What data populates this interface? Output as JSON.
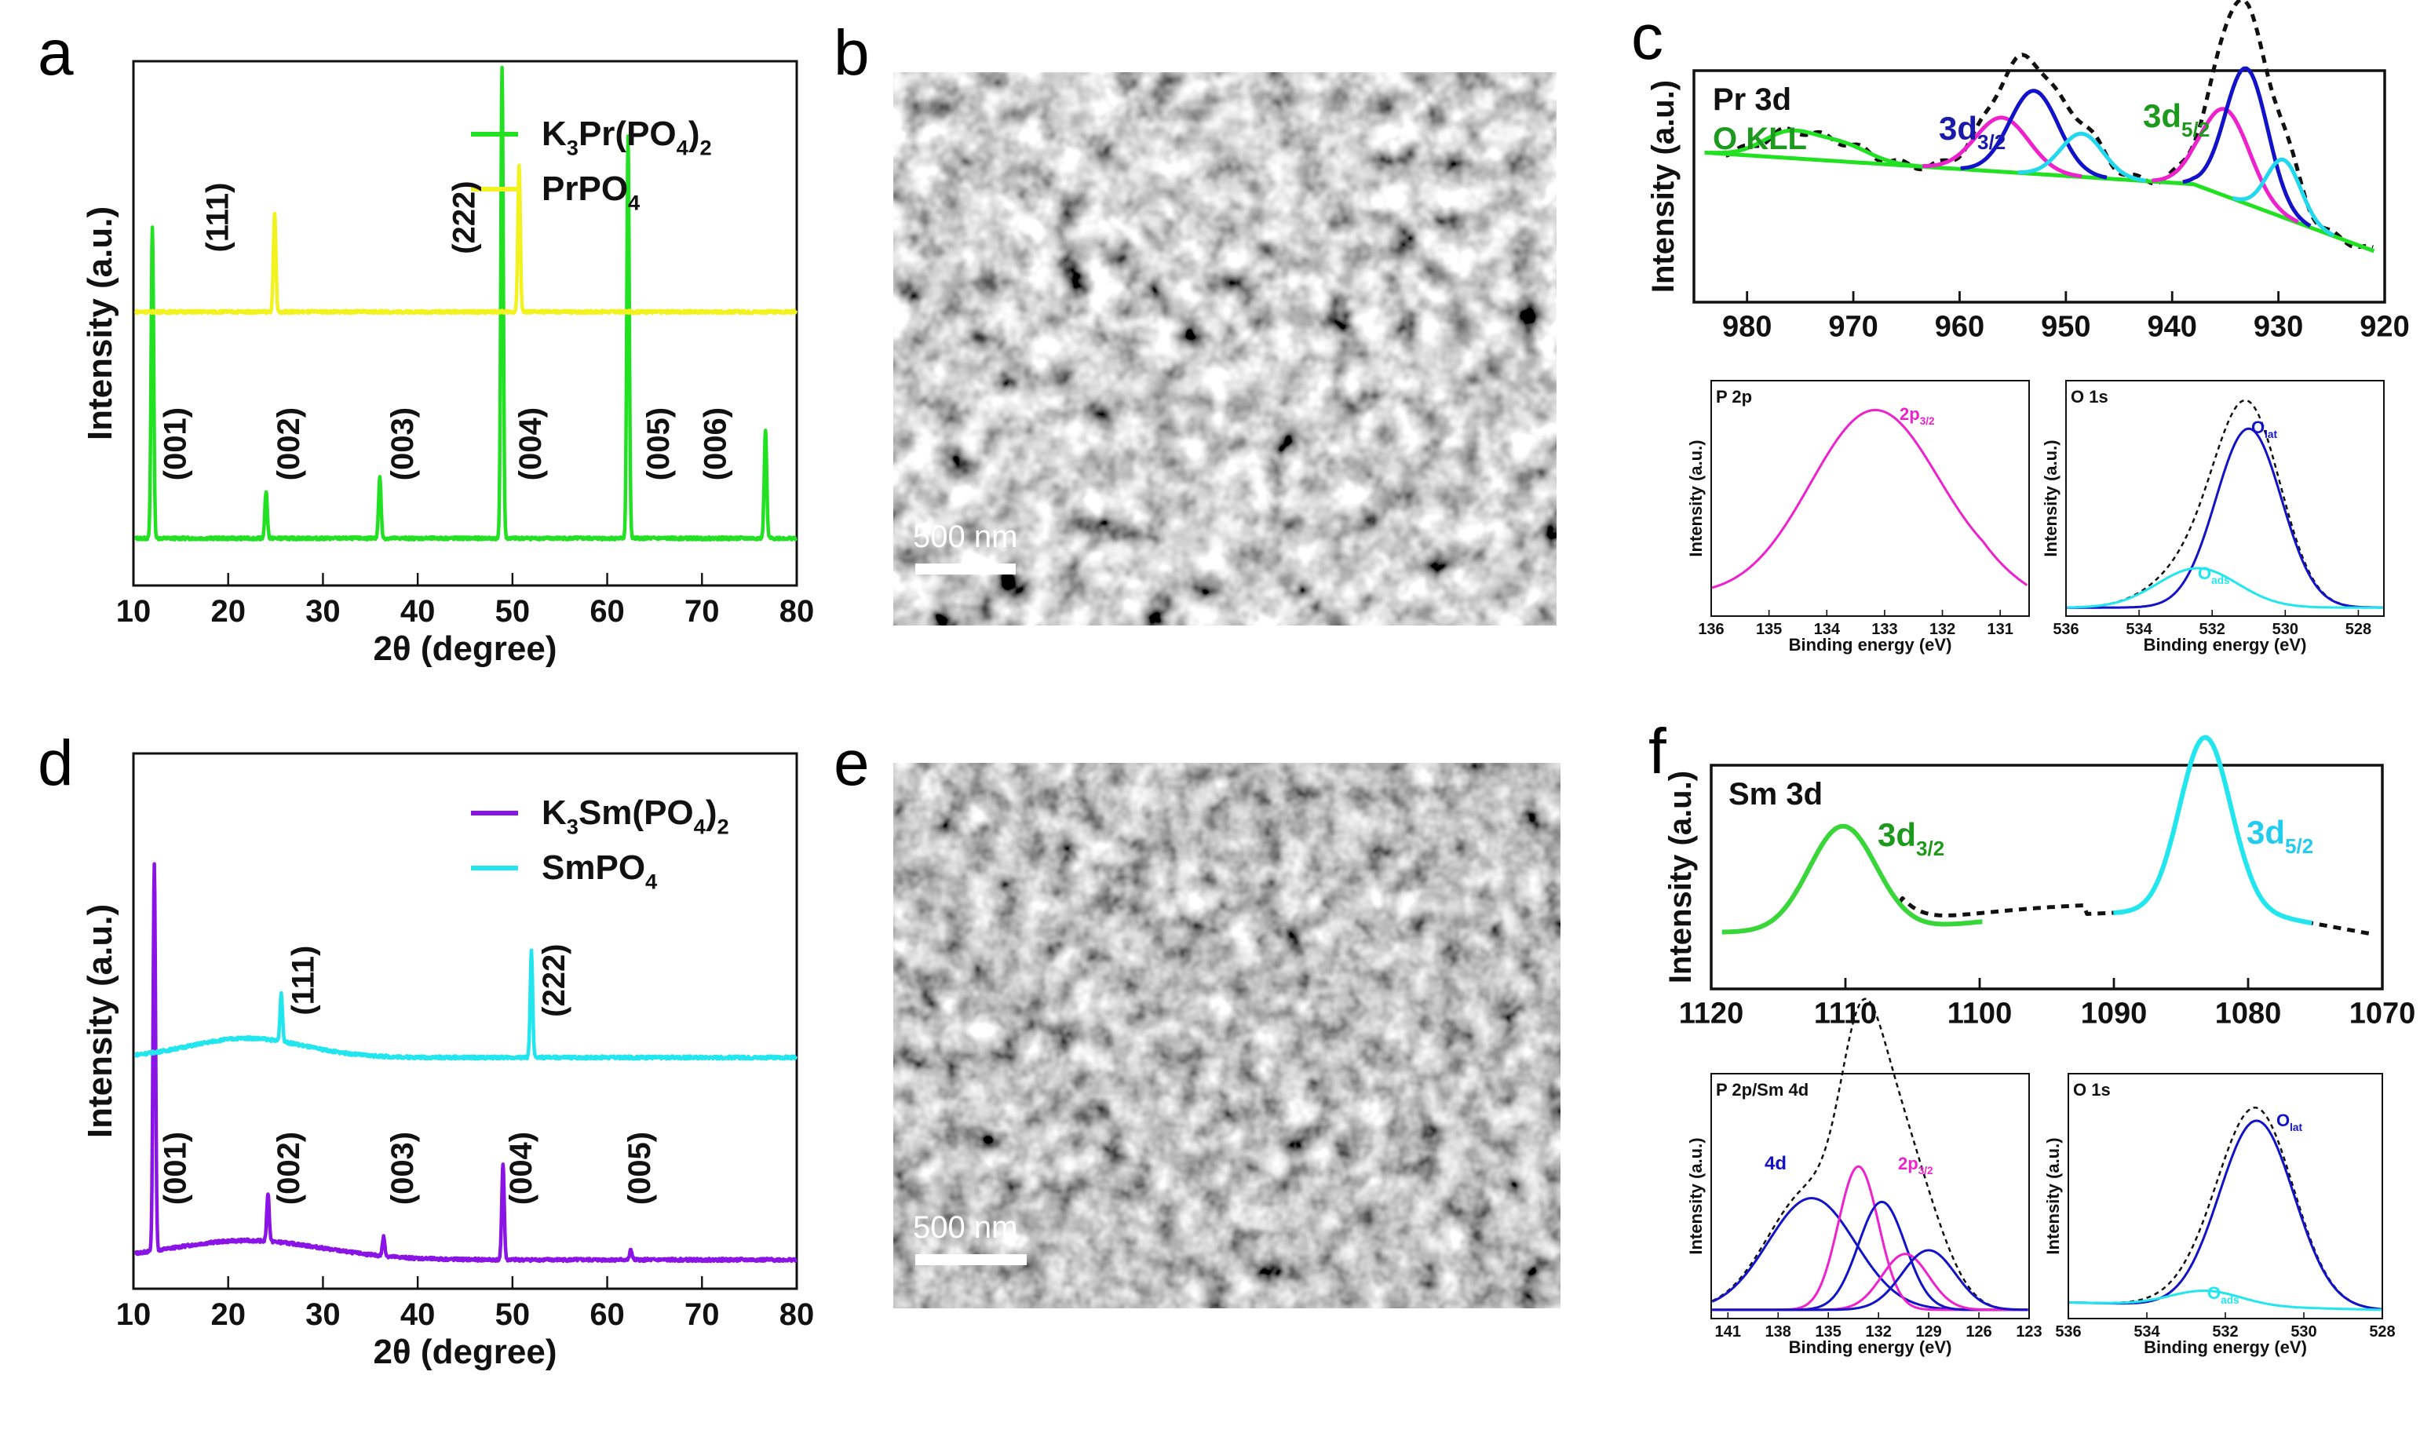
{
  "panel_letters": [
    "a",
    "b",
    "c",
    "d",
    "e",
    "f"
  ],
  "colors": {
    "green": "#22e022",
    "yellow": "#f2f21e",
    "purple": "#8a14e6",
    "cyan": "#22e6ee",
    "fit_green": "#39d639",
    "pink": "#ee22cc",
    "blue": "#1212c8",
    "cyan_fit": "#22d8ee",
    "label_green": "#1d9a1d",
    "label_blue": "#1a1aa8",
    "label_cyan": "#22ccee"
  },
  "sem": [
    {
      "panel": "b",
      "scale_label": "500 nm"
    },
    {
      "panel": "e",
      "scale_label": "500 nm"
    }
  ],
  "chart_data": [
    {
      "panel": "a",
      "type": "line",
      "xlabel": "2θ (degree)",
      "ylabel": "Intensity (a.u.)",
      "xlim": [
        10,
        80
      ],
      "xticks": [
        10,
        20,
        30,
        40,
        50,
        60,
        70,
        80
      ],
      "series": [
        {
          "name": "K3Pr(PO4)2",
          "legend": [
            "K",
            "3",
            "Pr(PO",
            "4",
            ")",
            "2"
          ],
          "color": "green",
          "baseline": 0.1,
          "peaks": [
            [
              12.0,
              0.66
            ],
            [
              24.0,
              0.1
            ],
            [
              36.0,
              0.13
            ],
            [
              48.9,
              1.0
            ],
            [
              62.2,
              0.85
            ],
            [
              76.7,
              0.23
            ]
          ]
        },
        {
          "name": "PrPO4",
          "legend": [
            "PrPO",
            "4"
          ],
          "color": "yellow",
          "baseline": 0.58,
          "peaks": [
            [
              24.9,
              0.21
            ],
            [
              50.7,
              0.31
            ]
          ]
        }
      ],
      "annotations": [
        {
          "text": "(001)",
          "x": 15.5,
          "level": 0.3
        },
        {
          "text": "(002)",
          "x": 27.5,
          "level": 0.3
        },
        {
          "text": "(003)",
          "x": 39.5,
          "level": 0.3
        },
        {
          "text": "(004)",
          "x": 53.0,
          "level": 0.3
        },
        {
          "text": "(005)",
          "x": 66.5,
          "level": 0.3
        },
        {
          "text": "(006)",
          "x": 72.5,
          "level": 0.3
        },
        {
          "text": "(111)",
          "x": 20.0,
          "level": 0.78
        },
        {
          "text": "(222)",
          "x": 46.0,
          "level": 0.78
        }
      ]
    },
    {
      "panel": "c",
      "type": "line",
      "xlabel": "",
      "ylabel": "Intensity (a.u.)",
      "xlim": [
        985,
        920
      ],
      "xticks": [
        980,
        970,
        960,
        950,
        940,
        930,
        920
      ],
      "labels": [
        {
          "text": "Pr 3d",
          "color": "#111111"
        },
        {
          "text": "O KLL",
          "color": "label_green"
        },
        {
          "text": "3d",
          "sub": "3/2",
          "color": "label_blue"
        },
        {
          "text": "3d",
          "sub": "5/2",
          "color": "label_green"
        }
      ],
      "series": [
        {
          "name": "raw",
          "style": "dashed",
          "color": "#111111"
        },
        {
          "name": "background",
          "color": "green"
        },
        {
          "name": "O KLL",
          "color": "green",
          "components": [
            [
              976,
              0.14,
              2.5
            ],
            [
              971,
              0.09,
              2.5
            ]
          ]
        },
        {
          "name": "3d3/2 a",
          "color": "pink",
          "components": [
            [
              956,
              0.3,
              2.5
            ]
          ]
        },
        {
          "name": "3d3/2 b",
          "color": "blue",
          "components": [
            [
              953,
              0.46,
              2.3
            ]
          ]
        },
        {
          "name": "3d3/2 c",
          "color": "cyan_fit",
          "components": [
            [
              948.5,
              0.24,
              2.0
            ]
          ]
        },
        {
          "name": "3d5/2 a",
          "color": "pink",
          "components": [
            [
              935,
              0.48,
              2.3
            ]
          ]
        },
        {
          "name": "3d5/2 b",
          "color": "blue",
          "components": [
            [
              933,
              0.75,
              2.0
            ]
          ]
        },
        {
          "name": "3d5/2 c",
          "color": "cyan_fit",
          "components": [
            [
              929.5,
              0.32,
              1.6
            ]
          ]
        }
      ]
    },
    {
      "panel": "c-P2p",
      "type": "line",
      "title": "P 2p",
      "xlabel": "Binding energy (eV)",
      "ylabel": "Intensity (a.u.)",
      "xlim": [
        136,
        130.5
      ],
      "xticks": [
        136,
        135,
        134,
        133,
        132,
        131
      ],
      "labels": [
        {
          "text": "2p",
          "sub": "3/2",
          "color": "pink"
        }
      ],
      "series": [
        {
          "name": "raw",
          "style": "dashed",
          "color": "#111111"
        },
        {
          "name": "2p3/2",
          "color": "pink",
          "components": [
            [
              133.2,
              1.0,
              1.1
            ]
          ]
        }
      ]
    },
    {
      "panel": "c-O1s",
      "type": "line",
      "title": "O 1s",
      "xlabel": "Binding energy (eV)",
      "ylabel": "Intensity (a.u.)",
      "xlim": [
        536,
        527.3
      ],
      "xticks": [
        536,
        534,
        532,
        530,
        528
      ],
      "labels": [
        {
          "text": "O",
          "sub": "lat",
          "color": "blue"
        },
        {
          "text": "O",
          "sub": "ads",
          "color": "cyan"
        }
      ],
      "series": [
        {
          "name": "raw",
          "style": "dashed",
          "color": "#111111"
        },
        {
          "name": "Olat",
          "color": "blue",
          "components": [
            [
              531.0,
              1.0,
              0.9
            ]
          ]
        },
        {
          "name": "Oads",
          "color": "cyan",
          "components": [
            [
              532.4,
              0.22,
              1.1
            ]
          ]
        }
      ]
    },
    {
      "panel": "d",
      "type": "line",
      "xlabel": "2θ (degree)",
      "ylabel": "Intensity (a.u.)",
      "xlim": [
        10,
        80
      ],
      "xticks": [
        10,
        20,
        30,
        40,
        50,
        60,
        70,
        80
      ],
      "series": [
        {
          "name": "K3Sm(PO4)2",
          "legend": [
            "K",
            "3",
            "Sm(PO",
            "4",
            ")",
            "2"
          ],
          "color": "purple",
          "baseline": 0.06,
          "hump": [
            22.0,
            0.04,
            8.0
          ],
          "peaks": [
            [
              12.2,
              0.8
            ],
            [
              24.2,
              0.1
            ],
            [
              36.4,
              0.04
            ],
            [
              49.0,
              0.2
            ],
            [
              62.5,
              0.02
            ]
          ]
        },
        {
          "name": "SmPO4",
          "legend": [
            "SmPO",
            "4"
          ],
          "color": "cyan",
          "baseline": 0.48,
          "hump": [
            22.0,
            0.04,
            6.0
          ],
          "peaks": [
            [
              25.6,
              0.1
            ],
            [
              52.0,
              0.22
            ]
          ]
        }
      ],
      "annotations": [
        {
          "text": "(001)",
          "x": 15.5,
          "level": 0.25
        },
        {
          "text": "(002)",
          "x": 27.5,
          "level": 0.25
        },
        {
          "text": "(003)",
          "x": 39.5,
          "level": 0.25
        },
        {
          "text": "(004)",
          "x": 52.0,
          "level": 0.25
        },
        {
          "text": "(005)",
          "x": 64.5,
          "level": 0.25
        },
        {
          "text": "(111)",
          "x": 29.0,
          "level": 0.64
        },
        {
          "text": "(222)",
          "x": 55.5,
          "level": 0.64
        }
      ]
    },
    {
      "panel": "f",
      "type": "line",
      "xlabel": "",
      "ylabel": "Intensity (a.u.)",
      "xlim": [
        1120,
        1070
      ],
      "xticks": [
        1120,
        1110,
        1100,
        1090,
        1080,
        1070
      ],
      "labels": [
        {
          "text": "Sm 3d",
          "color": "#111111"
        },
        {
          "text": "3d",
          "sub": "3/2",
          "color": "label_green"
        },
        {
          "text": "3d",
          "sub": "5/2",
          "color": "label_cyan"
        }
      ],
      "series": [
        {
          "name": "raw",
          "style": "dashed",
          "color": "#111111"
        },
        {
          "name": "3d3/2",
          "color": "fit_green",
          "components": [
            [
              1110.2,
              0.6,
              2.5
            ]
          ]
        },
        {
          "name": "3d5/2",
          "color": "cyan",
          "components": [
            [
              1083.2,
              1.0,
              1.9
            ]
          ]
        }
      ]
    },
    {
      "panel": "f-P2pSm4d",
      "type": "line",
      "title": "P 2p/Sm 4d",
      "xlabel": "Binding energy (eV)",
      "ylabel": "Intensity (a.u.)",
      "xlim": [
        142,
        123
      ],
      "xticks": [
        141,
        138,
        135,
        132,
        129,
        126,
        123
      ],
      "labels": [
        {
          "text": "4d",
          "color": "blue"
        },
        {
          "text": "2p",
          "sub": "3/2",
          "color": "pink"
        }
      ],
      "series": [
        {
          "name": "raw",
          "style": "dashed",
          "color": "#111111"
        },
        {
          "name": "4d a",
          "color": "blue",
          "components": [
            [
              136.0,
              0.6,
              2.6
            ]
          ]
        },
        {
          "name": "2p3/2 a",
          "color": "pink",
          "components": [
            [
              133.2,
              0.77,
              1.2
            ]
          ]
        },
        {
          "name": "4d b",
          "color": "blue",
          "components": [
            [
              131.8,
              0.58,
              1.4
            ]
          ]
        },
        {
          "name": "2p3/2 b",
          "color": "pink",
          "components": [
            [
              130.4,
              0.3,
              1.4
            ]
          ]
        },
        {
          "name": "4d c",
          "color": "blue",
          "components": [
            [
              129.0,
              0.32,
              1.6
            ]
          ]
        }
      ]
    },
    {
      "panel": "f-O1s",
      "type": "line",
      "title": "O 1s",
      "xlabel": "Binding energy (eV)",
      "ylabel": "Intensity (a.u.)",
      "xlim": [
        536,
        528
      ],
      "xticks": [
        536,
        534,
        532,
        530,
        528
      ],
      "labels": [
        {
          "text": "O",
          "sub": "lat",
          "color": "blue"
        },
        {
          "text": "O",
          "sub": "ads",
          "color": "cyan"
        }
      ],
      "series": [
        {
          "name": "raw",
          "style": "dashed",
          "color": "#111111"
        },
        {
          "name": "Olat",
          "color": "blue",
          "components": [
            [
              531.2,
              1.0,
              0.95
            ]
          ]
        },
        {
          "name": "Oads",
          "color": "cyan",
          "components": [
            [
              532.5,
              0.08,
              0.9
            ]
          ]
        }
      ]
    }
  ]
}
